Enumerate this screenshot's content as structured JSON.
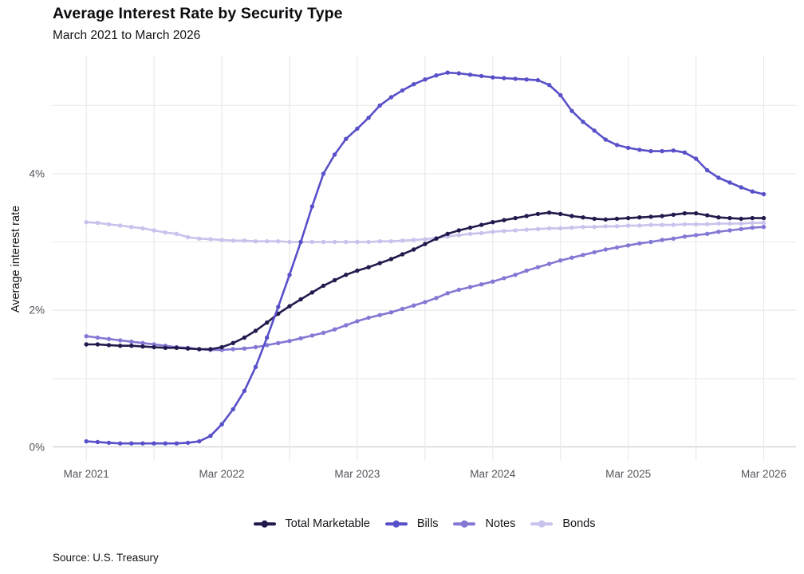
{
  "chart_data": {
    "type": "line",
    "title": "Average Interest Rate by Security Type",
    "subtitle": "March 2021 to March 2026",
    "source": "Source: U.S. Treasury",
    "grid": true,
    "legend_position": "bottom",
    "y_axis": {
      "label": "Average interest rate",
      "tick_labels": [
        "0%",
        "2%",
        "4%"
      ],
      "tick_values": [
        0,
        2,
        4
      ],
      "gridline_values": [
        0,
        1,
        2,
        3,
        4,
        5
      ],
      "range": [
        0,
        5.7
      ]
    },
    "x_axis": {
      "tick_labels": [
        "Mar 2021",
        "Mar 2022",
        "Mar 2023",
        "Mar 2024",
        "Mar 2025",
        "Mar 2026"
      ],
      "tick_month_indices": [
        0,
        12,
        24,
        36,
        48,
        60
      ],
      "gridline_month_indices": [
        0,
        6,
        12,
        18,
        24,
        30,
        36,
        42,
        48,
        54,
        60
      ],
      "range_months": [
        "2021-03",
        "2026-03"
      ]
    },
    "months": [
      "2021-03",
      "2021-04",
      "2021-05",
      "2021-06",
      "2021-07",
      "2021-08",
      "2021-09",
      "2021-10",
      "2021-11",
      "2021-12",
      "2022-01",
      "2022-02",
      "2022-03",
      "2022-04",
      "2022-05",
      "2022-06",
      "2022-07",
      "2022-08",
      "2022-09",
      "2022-10",
      "2022-11",
      "2022-12",
      "2023-01",
      "2023-02",
      "2023-03",
      "2023-04",
      "2023-05",
      "2023-06",
      "2023-07",
      "2023-08",
      "2023-09",
      "2023-10",
      "2023-11",
      "2023-12",
      "2024-01",
      "2024-02",
      "2024-03",
      "2024-04",
      "2024-05",
      "2024-06",
      "2024-07",
      "2024-08",
      "2024-09",
      "2024-10",
      "2024-11",
      "2024-12",
      "2025-01",
      "2025-02",
      "2025-03",
      "2025-04",
      "2025-05",
      "2025-06",
      "2025-07",
      "2025-08",
      "2025-09",
      "2025-10",
      "2025-11",
      "2025-12",
      "2026-01",
      "2026-02",
      "2026-03"
    ],
    "z_order": [
      3,
      2,
      0,
      1
    ],
    "series": [
      {
        "name": "Total Marketable",
        "color": "#211b4d",
        "values": [
          1.5,
          1.5,
          1.49,
          1.48,
          1.48,
          1.47,
          1.46,
          1.45,
          1.45,
          1.44,
          1.43,
          1.43,
          1.46,
          1.52,
          1.6,
          1.7,
          1.82,
          1.95,
          2.06,
          2.16,
          2.26,
          2.36,
          2.44,
          2.52,
          2.58,
          2.63,
          2.69,
          2.75,
          2.82,
          2.89,
          2.97,
          3.05,
          3.12,
          3.17,
          3.21,
          3.25,
          3.29,
          3.32,
          3.35,
          3.38,
          3.41,
          3.43,
          3.41,
          3.38,
          3.36,
          3.34,
          3.33,
          3.34,
          3.35,
          3.36,
          3.37,
          3.38,
          3.4,
          3.42,
          3.42,
          3.39,
          3.36,
          3.35,
          3.34,
          3.35,
          3.35
        ]
      },
      {
        "name": "Bills",
        "color": "#5850c9",
        "values": [
          0.08,
          0.07,
          0.06,
          0.05,
          0.05,
          0.05,
          0.05,
          0.05,
          0.05,
          0.06,
          0.08,
          0.16,
          0.33,
          0.55,
          0.82,
          1.17,
          1.6,
          2.05,
          2.52,
          3.0,
          3.52,
          4.0,
          4.28,
          4.51,
          4.66,
          4.82,
          5.0,
          5.12,
          5.22,
          5.31,
          5.38,
          5.44,
          5.48,
          5.47,
          5.45,
          5.43,
          5.41,
          5.4,
          5.39,
          5.38,
          5.37,
          5.3,
          5.15,
          4.92,
          4.76,
          4.63,
          4.5,
          4.42,
          4.38,
          4.35,
          4.33,
          4.33,
          4.34,
          4.31,
          4.22,
          4.05,
          3.94,
          3.87,
          3.8,
          3.74,
          3.7
        ]
      },
      {
        "name": "Notes",
        "color": "#8379d4",
        "values": [
          1.62,
          1.6,
          1.58,
          1.56,
          1.54,
          1.52,
          1.5,
          1.48,
          1.46,
          1.45,
          1.43,
          1.42,
          1.42,
          1.43,
          1.44,
          1.46,
          1.49,
          1.52,
          1.55,
          1.59,
          1.63,
          1.67,
          1.72,
          1.78,
          1.84,
          1.89,
          1.93,
          1.97,
          2.02,
          2.07,
          2.12,
          2.18,
          2.25,
          2.3,
          2.34,
          2.38,
          2.42,
          2.47,
          2.52,
          2.58,
          2.63,
          2.68,
          2.73,
          2.77,
          2.81,
          2.85,
          2.89,
          2.92,
          2.95,
          2.98,
          3.0,
          3.03,
          3.05,
          3.08,
          3.1,
          3.12,
          3.15,
          3.17,
          3.19,
          3.21,
          3.22
        ]
      },
      {
        "name": "Bonds",
        "color": "#c7c3ec",
        "values": [
          3.29,
          3.28,
          3.26,
          3.24,
          3.22,
          3.2,
          3.17,
          3.14,
          3.12,
          3.07,
          3.05,
          3.04,
          3.03,
          3.02,
          3.02,
          3.01,
          3.01,
          3.01,
          3.0,
          3.0,
          3.0,
          3.0,
          3.0,
          3.0,
          3.0,
          3.0,
          3.01,
          3.01,
          3.02,
          3.03,
          3.04,
          3.06,
          3.08,
          3.1,
          3.12,
          3.13,
          3.15,
          3.16,
          3.17,
          3.18,
          3.19,
          3.2,
          3.2,
          3.21,
          3.22,
          3.22,
          3.23,
          3.23,
          3.24,
          3.24,
          3.25,
          3.25,
          3.25,
          3.26,
          3.26,
          3.26,
          3.27,
          3.27,
          3.27,
          3.28,
          3.28
        ]
      }
    ],
    "style": {
      "grid_color": "#e8e8ea",
      "zero_line_color": "#d6d6d9",
      "line_width": 2.6,
      "marker_radius": 2.7
    }
  }
}
